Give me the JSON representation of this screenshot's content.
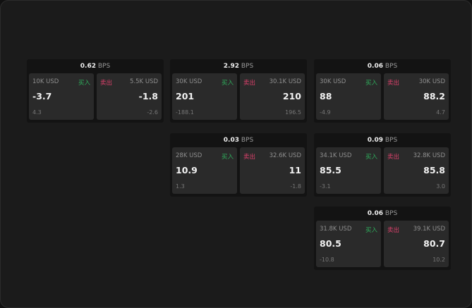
{
  "unit": "BPS",
  "buy_label": "买入",
  "sell_label": "卖出",
  "colors": {
    "buy": "#2fae5c",
    "sell": "#d9406a"
  },
  "cards": [
    {
      "spread": "0.62",
      "bid": {
        "size": "10K USD",
        "price": "-3.7",
        "change": "4.3"
      },
      "ask": {
        "size": "5.5K USD",
        "price": "-1.8",
        "change": "-2.6"
      }
    },
    {
      "spread": "2.92",
      "bid": {
        "size": "30K USD",
        "price": "201",
        "change": "-188.1"
      },
      "ask": {
        "size": "30.1K USD",
        "price": "210",
        "change": "196.5"
      }
    },
    {
      "spread": "0.06",
      "bid": {
        "size": "30K USD",
        "price": "88",
        "change": "-4.9"
      },
      "ask": {
        "size": "30K USD",
        "price": "88.2",
        "change": "4.7"
      }
    },
    {
      "spread": "0.03",
      "bid": {
        "size": "28K USD",
        "price": "10.9",
        "change": "1.3"
      },
      "ask": {
        "size": "32.6K USD",
        "price": "11",
        "change": "-1.8"
      }
    },
    {
      "spread": "0.09",
      "bid": {
        "size": "34.1K USD",
        "price": "85.5",
        "change": "-3.1"
      },
      "ask": {
        "size": "32.8K USD",
        "price": "85.8",
        "change": "3.0"
      }
    },
    {
      "spread": "0.06",
      "bid": {
        "size": "31.8K USD",
        "price": "80.5",
        "change": "-10.8"
      },
      "ask": {
        "size": "39.1K USD",
        "price": "80.7",
        "change": "10.2"
      }
    }
  ]
}
